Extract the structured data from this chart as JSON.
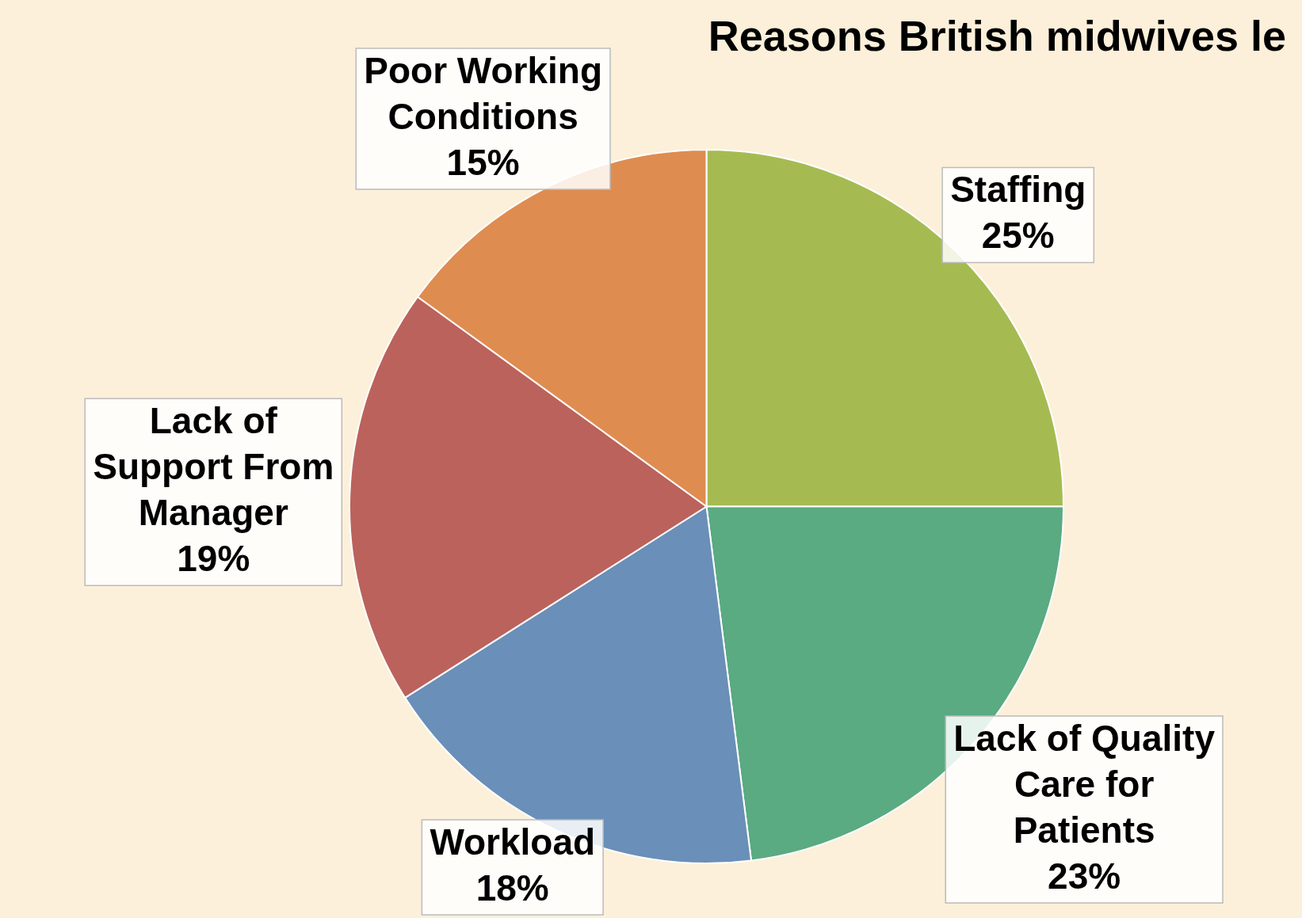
{
  "chart_data": {
    "type": "pie",
    "title": "Reasons British midwives le",
    "categories": [
      "Staffing",
      "Lack of Quality Care for Patients",
      "Workload",
      "Lack of Support From Manager",
      "Poor Working Conditions"
    ],
    "values": [
      25,
      23,
      18,
      19,
      15
    ],
    "colors": [
      "#a5bb52",
      "#5aaa82",
      "#6a8fb8",
      "#bb625c",
      "#df8c50"
    ],
    "value_labels": [
      "25%",
      "23%",
      "18%",
      "19%",
      "15%"
    ],
    "legend": false
  }
}
